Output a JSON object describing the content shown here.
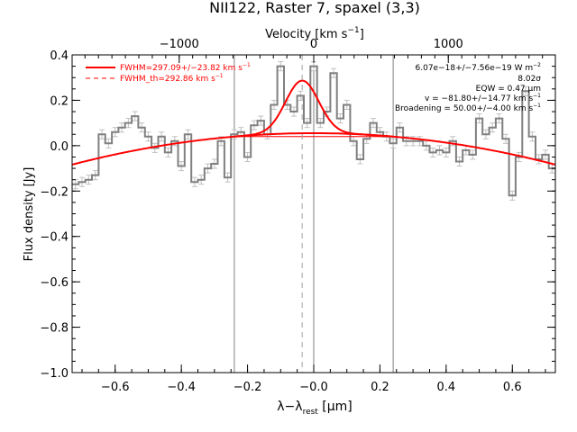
{
  "chart_data": {
    "type": "line",
    "title": "NII122, Raster 7, spaxel (3,3)",
    "xlabel": "λ−λ_rest [μm]",
    "xlabel_main": "λ−λ",
    "xlabel_sub": "rest",
    "xlabel_unit": " [μm]",
    "ylabel": "Flux density [Jy]",
    "top_axis": {
      "label": "Velocity [km s⁻¹]",
      "label_main": "Velocity [km s",
      "label_sup": "−1",
      "label_end": "]",
      "ticks": [
        -1000,
        0,
        1000
      ],
      "tick_labels": [
        "−1000",
        "0",
        "1000"
      ],
      "velocity_per_micron": 2460
    },
    "xlim": [
      -0.73,
      0.73
    ],
    "ylim": [
      -1.0,
      0.4
    ],
    "x_ticks": [
      -0.6,
      -0.4,
      -0.2,
      0.0,
      0.2,
      0.4,
      0.6
    ],
    "x_tick_labels": [
      "−0.6",
      "−0.4",
      "−0.2",
      "−0.0",
      "0.2",
      "0.4",
      "0.6"
    ],
    "y_ticks": [
      -1.0,
      -0.8,
      -0.6,
      -0.4,
      -0.2,
      0.0,
      0.2,
      0.4
    ],
    "y_tick_labels": [
      "−1.0",
      "−0.8",
      "−0.6",
      "−0.4",
      "−0.2",
      "0.0",
      "0.2",
      "0.4"
    ],
    "grid": false,
    "colors": {
      "data": "#808080",
      "fit": "#ff0000",
      "errorbar": "#c0c0c0",
      "marker_lines": "#808080"
    },
    "series": [
      {
        "name": "spectrum",
        "style": "steps",
        "x": [
          -0.72,
          -0.7,
          -0.68,
          -0.66,
          -0.64,
          -0.62,
          -0.6,
          -0.58,
          -0.56,
          -0.54,
          -0.52,
          -0.5,
          -0.48,
          -0.46,
          -0.44,
          -0.42,
          -0.4,
          -0.38,
          -0.36,
          -0.34,
          -0.32,
          -0.3,
          -0.28,
          -0.26,
          -0.24,
          -0.22,
          -0.2,
          -0.18,
          -0.16,
          -0.14,
          -0.12,
          -0.1,
          -0.08,
          -0.06,
          -0.04,
          -0.02,
          0.0,
          0.02,
          0.04,
          0.06,
          0.08,
          0.1,
          0.12,
          0.14,
          0.16,
          0.18,
          0.2,
          0.22,
          0.24,
          0.26,
          0.28,
          0.3,
          0.32,
          0.34,
          0.36,
          0.38,
          0.4,
          0.42,
          0.44,
          0.46,
          0.48,
          0.5,
          0.52,
          0.54,
          0.56,
          0.58,
          0.6,
          0.62,
          0.64,
          0.66,
          0.68,
          0.7,
          0.72
        ],
        "y": [
          -0.17,
          -0.16,
          -0.15,
          -0.13,
          0.05,
          0.01,
          0.06,
          0.08,
          0.1,
          0.13,
          0.08,
          0.04,
          -0.01,
          0.04,
          -0.03,
          0.02,
          -0.09,
          0.05,
          -0.16,
          -0.15,
          -0.1,
          -0.08,
          0.02,
          -0.14,
          0.05,
          0.06,
          -0.05,
          0.09,
          0.11,
          0.05,
          0.18,
          0.35,
          0.18,
          0.15,
          0.22,
          0.1,
          0.35,
          0.1,
          0.15,
          0.32,
          0.12,
          0.18,
          0.02,
          -0.06,
          0.03,
          0.1,
          0.06,
          0.04,
          0.01,
          0.08,
          0.02,
          0.02,
          0.02,
          0.0,
          -0.03,
          -0.02,
          -0.03,
          0.02,
          -0.07,
          -0.02,
          -0.04,
          0.12,
          0.05,
          0.08,
          0.12,
          0.03,
          -0.22,
          -0.05,
          0.24,
          0.04,
          -0.06,
          -0.04,
          -0.1
        ],
        "error": 0.02
      },
      {
        "name": "fit",
        "style": "line",
        "model": "gaussian plus polynomial baseline",
        "baseline_peak": 0.055,
        "baseline_curvature": 0.26,
        "gaussian_center": -0.035,
        "gaussian_amplitude": 0.232,
        "gaussian_sigma": 0.05,
        "baseline_extent": [
          -0.24,
          0.24
        ],
        "peak_marker_x": -0.035
      }
    ],
    "vertical_lines": [
      -0.24,
      0.0,
      0.24
    ],
    "legend": {
      "placement": "top-left",
      "entries": [
        {
          "label": "FWHM=297.09+/−23.82 km s⁻¹",
          "label_main": "FWHM=297.09+/−23.82 km s",
          "label_sup": "−1",
          "style": "solid"
        },
        {
          "label": "FWHM_th=292.86 km s⁻¹",
          "label_main": "FWHM_th=292.86 km s",
          "label_sup": "−1",
          "style": "dashed"
        }
      ]
    },
    "annotations": {
      "placement": "top-right",
      "lines": [
        {
          "main": "6.07e−18+/−7.56e−19 W m",
          "sup": "−2"
        },
        {
          "main": "8.02σ",
          "sup": ""
        },
        {
          "main": "EQW = 0.47 μm",
          "sup": ""
        },
        {
          "main": "v = −81.80+/−14.77 km s",
          "sup": "−1"
        },
        {
          "main": "Broadening = 50.00+/−4.00 km s",
          "sup": "−1"
        }
      ]
    }
  }
}
